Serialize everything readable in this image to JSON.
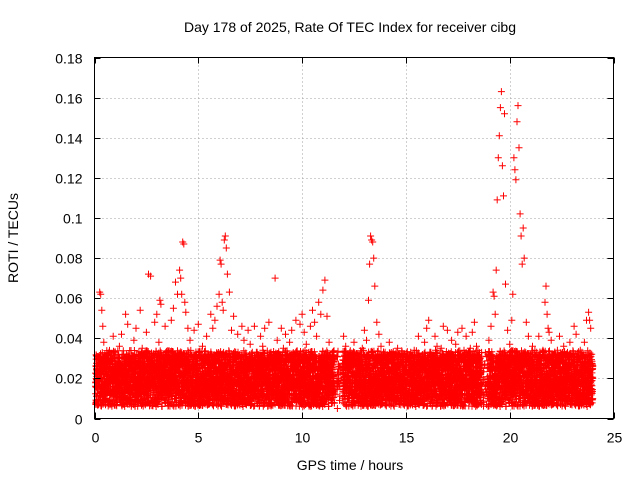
{
  "chart_data": {
    "type": "scatter",
    "title": "Day 178 of 2025, Rate Of TEC Index for receiver cibg",
    "xlabel": "GPS time / hours",
    "ylabel": "ROTI / TECUs",
    "xlim": [
      0,
      25
    ],
    "ylim": [
      0,
      0.18
    ],
    "xticks": [
      0,
      5,
      10,
      15,
      20,
      25
    ],
    "xtick_labels": [
      "0",
      "5",
      "10",
      "15",
      "20",
      "25"
    ],
    "yticks": [
      0,
      0.02,
      0.04,
      0.06,
      0.08,
      0.1,
      0.12,
      0.14,
      0.16,
      0.18
    ],
    "ytick_labels": [
      "0",
      "0.02",
      "0.04",
      "0.06",
      "0.08",
      "0.1",
      "0.12",
      "0.14",
      "0.16",
      "0.18"
    ],
    "grid": true,
    "marker": "plus",
    "series_color": "#ff0000",
    "series": [
      {
        "name": "ROTI",
        "points": [
          [
            0.1,
            0.018
          ],
          [
            0.2,
            0.024
          ],
          [
            0.25,
            0.063
          ],
          [
            0.3,
            0.062
          ],
          [
            0.35,
            0.054
          ],
          [
            0.4,
            0.046
          ],
          [
            0.45,
            0.038
          ],
          [
            0.5,
            0.015
          ],
          [
            0.6,
            0.028
          ],
          [
            0.7,
            0.033
          ],
          [
            0.8,
            0.012
          ],
          [
            0.9,
            0.041
          ],
          [
            1.0,
            0.022
          ],
          [
            1.1,
            0.008
          ],
          [
            1.2,
            0.036
          ],
          [
            1.3,
            0.042
          ],
          [
            1.4,
            0.019
          ],
          [
            1.5,
            0.052
          ],
          [
            1.6,
            0.047
          ],
          [
            1.7,
            0.026
          ],
          [
            1.8,
            0.013
          ],
          [
            1.9,
            0.039
          ],
          [
            2.0,
            0.045
          ],
          [
            2.1,
            0.021
          ],
          [
            2.2,
            0.054
          ],
          [
            2.3,
            0.035
          ],
          [
            2.4,
            0.017
          ],
          [
            2.5,
            0.043
          ],
          [
            2.6,
            0.072
          ],
          [
            2.7,
            0.071
          ],
          [
            2.8,
            0.029
          ],
          [
            2.9,
            0.048
          ],
          [
            3.0,
            0.052
          ],
          [
            3.1,
            0.038
          ],
          [
            3.15,
            0.059
          ],
          [
            3.2,
            0.057
          ],
          [
            3.3,
            0.024
          ],
          [
            3.4,
            0.046
          ],
          [
            3.5,
            0.032
          ],
          [
            3.6,
            0.015
          ],
          [
            3.7,
            0.049
          ],
          [
            3.8,
            0.055
          ],
          [
            3.9,
            0.068
          ],
          [
            4.0,
            0.062
          ],
          [
            4.1,
            0.074
          ],
          [
            4.15,
            0.07
          ],
          [
            4.2,
            0.062
          ],
          [
            4.25,
            0.088
          ],
          [
            4.3,
            0.087
          ],
          [
            4.35,
            0.058
          ],
          [
            4.4,
            0.053
          ],
          [
            4.5,
            0.045
          ],
          [
            4.6,
            0.039
          ],
          [
            4.7,
            0.026
          ],
          [
            4.8,
            0.044
          ],
          [
            4.9,
            0.031
          ],
          [
            5.0,
            0.047
          ],
          [
            5.1,
            0.022
          ],
          [
            5.2,
            0.036
          ],
          [
            5.3,
            0.018
          ],
          [
            5.4,
            0.041
          ],
          [
            5.5,
            0.028
          ],
          [
            5.6,
            0.052
          ],
          [
            5.7,
            0.045
          ],
          [
            5.8,
            0.049
          ],
          [
            5.9,
            0.056
          ],
          [
            6.0,
            0.062
          ],
          [
            6.05,
            0.079
          ],
          [
            6.1,
            0.077
          ],
          [
            6.15,
            0.058
          ],
          [
            6.2,
            0.054
          ],
          [
            6.25,
            0.089
          ],
          [
            6.3,
            0.091
          ],
          [
            6.35,
            0.085
          ],
          [
            6.4,
            0.072
          ],
          [
            6.5,
            0.063
          ],
          [
            6.6,
            0.044
          ],
          [
            6.7,
            0.051
          ],
          [
            6.8,
            0.033
          ],
          [
            6.9,
            0.042
          ],
          [
            7.0,
            0.027
          ],
          [
            7.1,
            0.046
          ],
          [
            7.2,
            0.039
          ],
          [
            7.3,
            0.021
          ],
          [
            7.4,
            0.044
          ],
          [
            7.5,
            0.037
          ],
          [
            7.6,
            0.029
          ],
          [
            7.7,
            0.046
          ],
          [
            7.8,
            0.033
          ],
          [
            7.9,
            0.024
          ],
          [
            8.0,
            0.041
          ],
          [
            8.1,
            0.036
          ],
          [
            8.2,
            0.045
          ],
          [
            8.3,
            0.028
          ],
          [
            8.4,
            0.048
          ],
          [
            8.5,
            0.033
          ],
          [
            8.6,
            0.022
          ],
          [
            8.7,
            0.07
          ],
          [
            8.8,
            0.039
          ],
          [
            8.9,
            0.027
          ],
          [
            9.0,
            0.045
          ],
          [
            9.1,
            0.035
          ],
          [
            9.2,
            0.042
          ],
          [
            9.3,
            0.024
          ],
          [
            9.4,
            0.038
          ],
          [
            9.5,
            0.044
          ],
          [
            9.6,
            0.031
          ],
          [
            9.7,
            0.049
          ],
          [
            9.8,
            0.026
          ],
          [
            9.9,
            0.047
          ],
          [
            10.0,
            0.052
          ],
          [
            10.1,
            0.043
          ],
          [
            10.2,
            0.037
          ],
          [
            10.3,
            0.029
          ],
          [
            10.4,
            0.046
          ],
          [
            10.5,
            0.054
          ],
          [
            10.6,
            0.048
          ],
          [
            10.7,
            0.041
          ],
          [
            10.8,
            0.058
          ],
          [
            10.9,
            0.052
          ],
          [
            11.0,
            0.064
          ],
          [
            11.1,
            0.069
          ],
          [
            11.2,
            0.051
          ],
          [
            11.3,
            0.038
          ],
          [
            11.4,
            0.027
          ],
          [
            11.5,
            0.018
          ],
          [
            11.6,
            0.012
          ],
          [
            11.7,
            0.005
          ],
          [
            11.8,
            0.009
          ],
          [
            12.0,
            0.041
          ],
          [
            12.1,
            0.036
          ],
          [
            12.2,
            0.029
          ],
          [
            12.3,
            0.033
          ],
          [
            12.4,
            0.026
          ],
          [
            12.5,
            0.038
          ],
          [
            12.6,
            0.022
          ],
          [
            12.7,
            0.031
          ],
          [
            12.8,
            0.027
          ],
          [
            12.9,
            0.035
          ],
          [
            13.0,
            0.044
          ],
          [
            13.1,
            0.039
          ],
          [
            13.2,
            0.059
          ],
          [
            13.25,
            0.077
          ],
          [
            13.3,
            0.091
          ],
          [
            13.35,
            0.089
          ],
          [
            13.4,
            0.088
          ],
          [
            13.45,
            0.08
          ],
          [
            13.5,
            0.066
          ],
          [
            13.6,
            0.048
          ],
          [
            13.7,
            0.042
          ],
          [
            13.8,
            0.036
          ],
          [
            13.9,
            0.029
          ],
          [
            14.0,
            0.033
          ],
          [
            14.1,
            0.028
          ],
          [
            14.2,
            0.038
          ],
          [
            14.3,
            0.025
          ],
          [
            14.4,
            0.031
          ],
          [
            14.5,
            0.022
          ],
          [
            14.6,
            0.035
          ],
          [
            14.7,
            0.027
          ],
          [
            14.8,
            0.019
          ],
          [
            14.9,
            0.032
          ],
          [
            15.0,
            0.024
          ],
          [
            15.1,
            0.011
          ],
          [
            15.2,
            0.029
          ],
          [
            15.3,
            0.018
          ],
          [
            15.4,
            0.034
          ],
          [
            15.5,
            0.026
          ],
          [
            15.6,
            0.041
          ],
          [
            15.7,
            0.031
          ],
          [
            15.8,
            0.023
          ],
          [
            15.9,
            0.038
          ],
          [
            16.0,
            0.045
          ],
          [
            16.1,
            0.049
          ],
          [
            16.2,
            0.033
          ],
          [
            16.3,
            0.027
          ],
          [
            16.4,
            0.041
          ],
          [
            16.5,
            0.036
          ],
          [
            16.6,
            0.029
          ],
          [
            16.7,
            0.035
          ],
          [
            16.8,
            0.046
          ],
          [
            16.9,
            0.028
          ],
          [
            17.0,
            0.044
          ],
          [
            17.1,
            0.031
          ],
          [
            17.2,
            0.039
          ],
          [
            17.3,
            0.025
          ],
          [
            17.4,
            0.037
          ],
          [
            17.5,
            0.043
          ],
          [
            17.6,
            0.029
          ],
          [
            17.7,
            0.045
          ],
          [
            17.8,
            0.034
          ],
          [
            17.9,
            0.041
          ],
          [
            18.0,
            0.028
          ],
          [
            18.1,
            0.035
          ],
          [
            18.2,
            0.043
          ],
          [
            18.3,
            0.048
          ],
          [
            18.4,
            0.036
          ],
          [
            18.5,
            0.029
          ],
          [
            18.6,
            0.022
          ],
          [
            18.7,
            0.018
          ],
          [
            18.8,
            0.012
          ],
          [
            19.0,
            0.039
          ],
          [
            19.1,
            0.046
          ],
          [
            19.2,
            0.063
          ],
          [
            19.25,
            0.061
          ],
          [
            19.3,
            0.052
          ],
          [
            19.35,
            0.074
          ],
          [
            19.4,
            0.109
          ],
          [
            19.45,
            0.13
          ],
          [
            19.5,
            0.141
          ],
          [
            19.55,
            0.155
          ],
          [
            19.6,
            0.163
          ],
          [
            19.65,
            0.126
          ],
          [
            19.7,
            0.111
          ],
          [
            19.75,
            0.152
          ],
          [
            19.8,
            0.067
          ],
          [
            19.9,
            0.044
          ],
          [
            20.0,
            0.037
          ],
          [
            20.1,
            0.049
          ],
          [
            20.15,
            0.062
          ],
          [
            20.2,
            0.13
          ],
          [
            20.25,
            0.124
          ],
          [
            20.3,
            0.119
          ],
          [
            20.35,
            0.148
          ],
          [
            20.4,
            0.156
          ],
          [
            20.45,
            0.135
          ],
          [
            20.5,
            0.102
          ],
          [
            20.55,
            0.091
          ],
          [
            20.6,
            0.077
          ],
          [
            20.65,
            0.095
          ],
          [
            20.7,
            0.08
          ],
          [
            20.8,
            0.048
          ],
          [
            20.9,
            0.041
          ],
          [
            21.0,
            0.029
          ],
          [
            21.1,
            0.036
          ],
          [
            21.2,
            0.024
          ],
          [
            21.3,
            0.033
          ],
          [
            21.4,
            0.041
          ],
          [
            21.5,
            0.029
          ],
          [
            21.6,
            0.034
          ],
          [
            21.7,
            0.058
          ],
          [
            21.75,
            0.066
          ],
          [
            21.8,
            0.052
          ],
          [
            21.85,
            0.045
          ],
          [
            21.9,
            0.043
          ],
          [
            22.0,
            0.039
          ],
          [
            22.1,
            0.032
          ],
          [
            22.2,
            0.027
          ],
          [
            22.3,
            0.034
          ],
          [
            22.4,
            0.041
          ],
          [
            22.5,
            0.029
          ],
          [
            22.6,
            0.036
          ],
          [
            22.7,
            0.024
          ],
          [
            22.8,
            0.031
          ],
          [
            22.9,
            0.038
          ],
          [
            23.0,
            0.027
          ],
          [
            23.1,
            0.046
          ],
          [
            23.2,
            0.042
          ],
          [
            23.3,
            0.021
          ],
          [
            23.4,
            0.034
          ],
          [
            23.5,
            0.028
          ],
          [
            23.6,
            0.038
          ],
          [
            23.7,
            0.049
          ],
          [
            23.8,
            0.053
          ],
          [
            23.85,
            0.049
          ],
          [
            23.9,
            0.045
          ],
          [
            23.95,
            0.032
          ]
        ],
        "band_hours": [
          0.05,
          24.0
        ],
        "band_note": "dense cluster of points roughly 0.005-0.040 TECUs across the whole day",
        "quiet_windows": [
          [
            11.55,
            11.95
          ],
          [
            18.65,
            18.95
          ]
        ]
      }
    ]
  }
}
